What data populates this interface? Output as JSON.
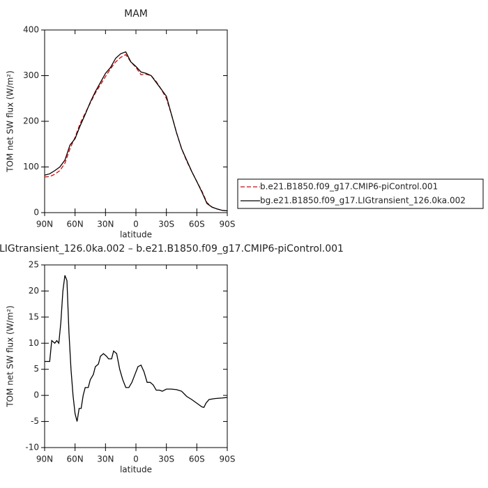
{
  "chart_data": [
    {
      "type": "line",
      "title": "MAM",
      "xlabel": "latitude",
      "ylabel": "TOM net SW flux (W/m²)",
      "x": [
        90,
        85,
        80,
        75,
        70,
        65,
        60,
        55,
        50,
        45,
        40,
        35,
        30,
        25,
        20,
        15,
        10,
        5,
        0,
        -5,
        -10,
        -15,
        -20,
        -25,
        -30,
        -35,
        -40,
        -45,
        -50,
        -55,
        -60,
        -65,
        -70,
        -75,
        -80,
        -85,
        -90
      ],
      "series": [
        {
          "name": "b.e21.B1850.f09_g17.CMIP6-piControl.001",
          "color": "#e00000",
          "line_style": "dashed",
          "values": [
            78,
            79,
            84,
            92,
            108,
            140,
            165,
            195,
            218,
            240,
            262,
            280,
            298,
            315,
            330,
            340,
            346,
            330,
            318,
            302,
            303,
            300,
            287,
            270,
            250,
            215,
            175,
            140,
            113,
            90,
            68,
            47,
            22,
            12,
            8,
            5,
            4
          ]
        },
        {
          "name": "bg.e21.B1850.f09_g17.LIGtransient_126.0ka.002",
          "color": "#000000",
          "line_style": "solid",
          "values": [
            82,
            85,
            92,
            100,
            115,
            148,
            162,
            190,
            215,
            242,
            265,
            285,
            305,
            318,
            338,
            348,
            352,
            330,
            320,
            308,
            305,
            300,
            285,
            270,
            255,
            215,
            175,
            140,
            115,
            90,
            68,
            45,
            20,
            12,
            8,
            5,
            4
          ]
        }
      ],
      "xlim": [
        90,
        -90
      ],
      "xticks": [
        {
          "value": 90,
          "label": "90N"
        },
        {
          "value": 60,
          "label": "60N"
        },
        {
          "value": 30,
          "label": "30N"
        },
        0,
        {
          "value": -30,
          "label": "30S"
        },
        {
          "value": -60,
          "label": "60S"
        },
        {
          "value": -90,
          "label": "90S"
        }
      ],
      "ylim": [
        0,
        400
      ],
      "yticks": [
        0,
        100,
        200,
        300,
        400
      ]
    },
    {
      "type": "line",
      "title": "LIGtransient_126.0ka.002 – b.e21.B1850.f09_g17.CMIP6-piControl.001",
      "xlabel": "latitude",
      "ylabel": "TOM net SW flux (W/m²)",
      "x": [
        90,
        85,
        83,
        80,
        78,
        76,
        74,
        72,
        70,
        68,
        66,
        64,
        62,
        60,
        58,
        56,
        54,
        52,
        50,
        47,
        45,
        42,
        40,
        37,
        35,
        32,
        29,
        27,
        24,
        22,
        19,
        16,
        13,
        10,
        7,
        4,
        1,
        -2,
        -5,
        -8,
        -11,
        -14,
        -17,
        -20,
        -23,
        -26,
        -30,
        -35,
        -40,
        -45,
        -50,
        -55,
        -60,
        -65,
        -67,
        -69,
        -72,
        -78,
        -85,
        -90
      ],
      "series": [
        {
          "color": "#000000",
          "line_style": "solid",
          "values": [
            6.5,
            6.5,
            10.5,
            10,
            10.5,
            10,
            14,
            20,
            23,
            22,
            12,
            5,
            0,
            -3.5,
            -5,
            -2.5,
            -2.5,
            0,
            1.5,
            1.5,
            3,
            4,
            5.5,
            6,
            7.5,
            8,
            7.5,
            7,
            7,
            8.5,
            8,
            5,
            3,
            1.5,
            1.5,
            2.5,
            4,
            5.5,
            5.8,
            4.5,
            2.5,
            2.5,
            2,
            1,
            1,
            0.8,
            1.2,
            1.2,
            1.1,
            0.8,
            -0.2,
            -0.8,
            -1.5,
            -2.2,
            -2.3,
            -1.5,
            -0.8,
            -0.6,
            -0.5,
            -0.4
          ]
        }
      ],
      "xlim": [
        90,
        -90
      ],
      "xticks": [
        {
          "value": 90,
          "label": "90N"
        },
        {
          "value": 60,
          "label": "60N"
        },
        {
          "value": 30,
          "label": "30N"
        },
        0,
        {
          "value": -30,
          "label": "30S"
        },
        {
          "value": -60,
          "label": "60S"
        },
        {
          "value": -90,
          "label": "90S"
        }
      ],
      "ylim": [
        -10,
        25
      ],
      "yticks": [
        -10,
        -5,
        0,
        5,
        10,
        15,
        20,
        25
      ]
    }
  ]
}
